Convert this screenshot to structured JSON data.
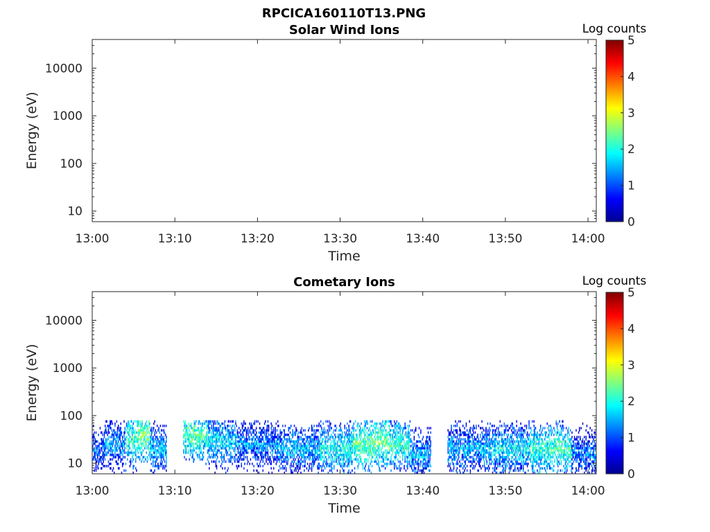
{
  "figure": {
    "title": "RPCICA160110T13.PNG"
  },
  "chart_data": [
    {
      "type": "heatmap",
      "title": "Solar Wind Ions",
      "xlabel": "Time",
      "ylabel": "Energy (eV)",
      "x_ticks": [
        "13:00",
        "13:10",
        "13:20",
        "13:30",
        "13:40",
        "13:50",
        "14:00"
      ],
      "x_range": [
        "13:00",
        "14:01"
      ],
      "y_scale": "log",
      "y_ticks": [
        10,
        100,
        1000,
        10000
      ],
      "y_tick_labels": [
        "10",
        "100",
        "1000",
        "10000"
      ],
      "y_range": [
        6,
        40000
      ],
      "colorbar": {
        "label": "Log counts",
        "range": [
          0,
          5
        ],
        "ticks": [
          "0",
          "1",
          "2",
          "3",
          "4",
          "5"
        ]
      },
      "cells": []
    },
    {
      "type": "heatmap",
      "title": "Cometary Ions",
      "xlabel": "Time",
      "ylabel": "Energy (eV)",
      "x_ticks": [
        "13:00",
        "13:10",
        "13:20",
        "13:30",
        "13:40",
        "13:50",
        "14:00"
      ],
      "x_range": [
        "13:00",
        "14:01"
      ],
      "y_scale": "log",
      "y_ticks": [
        10,
        100,
        1000,
        10000
      ],
      "y_tick_labels": [
        "10",
        "100",
        "1000",
        "10000"
      ],
      "y_range": [
        6,
        40000
      ],
      "colorbar": {
        "label": "Log counts",
        "range": [
          0,
          5
        ],
        "ticks": [
          "0",
          "1",
          "2",
          "3",
          "4",
          "5"
        ]
      },
      "energy_extent_eV": [
        6,
        80
      ],
      "active_intervals": [
        [
          "13:00",
          "13:09"
        ],
        [
          "13:11",
          "13:41"
        ],
        [
          "13:43",
          "14:01"
        ]
      ],
      "samples": [
        {
          "time": "13:00",
          "energy_eV": 20,
          "log_counts": 1.2
        },
        {
          "time": "13:03",
          "energy_eV": 25,
          "log_counts": 1.5
        },
        {
          "time": "13:05",
          "energy_eV": 30,
          "log_counts": 2.2
        },
        {
          "time": "13:06",
          "energy_eV": 40,
          "log_counts": 2.5
        },
        {
          "time": "13:08",
          "energy_eV": 20,
          "log_counts": 1.6
        },
        {
          "time": "13:13",
          "energy_eV": 40,
          "log_counts": 2.3
        },
        {
          "time": "13:15",
          "energy_eV": 30,
          "log_counts": 1.8
        },
        {
          "time": "13:20",
          "energy_eV": 25,
          "log_counts": 1.4
        },
        {
          "time": "13:25",
          "energy_eV": 20,
          "log_counts": 1.6
        },
        {
          "time": "13:30",
          "energy_eV": 20,
          "log_counts": 2.0
        },
        {
          "time": "13:33",
          "energy_eV": 25,
          "log_counts": 2.4
        },
        {
          "time": "13:35",
          "energy_eV": 30,
          "log_counts": 2.5
        },
        {
          "time": "13:37",
          "energy_eV": 25,
          "log_counts": 2.2
        },
        {
          "time": "13:40",
          "energy_eV": 15,
          "log_counts": 1.5
        },
        {
          "time": "13:46",
          "energy_eV": 20,
          "log_counts": 1.6
        },
        {
          "time": "13:50",
          "energy_eV": 20,
          "log_counts": 1.8
        },
        {
          "time": "13:56",
          "energy_eV": 20,
          "log_counts": 2.2
        },
        {
          "time": "14:00",
          "energy_eV": 15,
          "log_counts": 1.3
        }
      ]
    }
  ]
}
